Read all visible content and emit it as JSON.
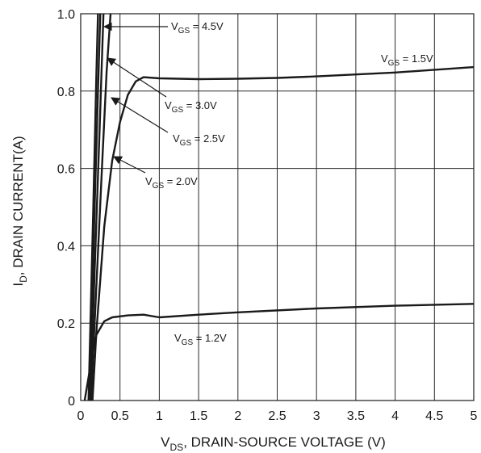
{
  "chart_data": {
    "type": "line",
    "xlabel": {
      "base": "V",
      "sub": "DS",
      "rest": ", DRAIN-SOURCE VOLTAGE (V)"
    },
    "ylabel": {
      "base": "I",
      "sub": "D",
      "rest": ", DRAIN CURRENT(A)"
    },
    "xlim": [
      0,
      5
    ],
    "ylim": [
      0,
      1.0
    ],
    "x_ticks": [
      "0",
      "0.5",
      "1",
      "1.5",
      "2",
      "2.5",
      "3",
      "3.5",
      "4",
      "4.5",
      "5"
    ],
    "y_ticks": [
      "0",
      "0.2",
      "0.4",
      "0.6",
      "0.8",
      "1.0"
    ],
    "grid": true,
    "series": [
      {
        "name": "V_GS = 1.2V",
        "points": [
          [
            0.05,
            0.0
          ],
          [
            0.1,
            0.06
          ],
          [
            0.15,
            0.12
          ],
          [
            0.2,
            0.17
          ],
          [
            0.3,
            0.205
          ],
          [
            0.4,
            0.215
          ],
          [
            0.6,
            0.22
          ],
          [
            0.8,
            0.222
          ],
          [
            1.0,
            0.215
          ],
          [
            1.5,
            0.222
          ],
          [
            2.0,
            0.228
          ],
          [
            3.0,
            0.238
          ],
          [
            4.0,
            0.245
          ],
          [
            5.0,
            0.25
          ]
        ]
      },
      {
        "name": "V_GS = 1.5V",
        "points": [
          [
            0.15,
            0.0
          ],
          [
            0.2,
            0.18
          ],
          [
            0.3,
            0.45
          ],
          [
            0.4,
            0.62
          ],
          [
            0.5,
            0.72
          ],
          [
            0.6,
            0.79
          ],
          [
            0.7,
            0.825
          ],
          [
            0.8,
            0.836
          ],
          [
            1.0,
            0.833
          ],
          [
            1.5,
            0.831
          ],
          [
            2.0,
            0.832
          ],
          [
            2.5,
            0.834
          ],
          [
            3.0,
            0.838
          ],
          [
            4.0,
            0.848
          ],
          [
            5.0,
            0.862
          ]
        ]
      },
      {
        "name": "V_GS = 2.0V",
        "points": [
          [
            0.13,
            0.0
          ],
          [
            0.2,
            0.3
          ],
          [
            0.27,
            0.6
          ],
          [
            0.33,
            0.85
          ],
          [
            0.38,
            1.0
          ]
        ]
      },
      {
        "name": "V_GS = 2.5V",
        "points": [
          [
            0.12,
            0.0
          ],
          [
            0.18,
            0.35
          ],
          [
            0.24,
            0.7
          ],
          [
            0.29,
            1.0
          ]
        ]
      },
      {
        "name": "V_GS = 3.0V",
        "points": [
          [
            0.11,
            0.0
          ],
          [
            0.17,
            0.45
          ],
          [
            0.22,
            0.8
          ],
          [
            0.25,
            1.0
          ]
        ]
      },
      {
        "name": "V_GS = 4.5V",
        "points": [
          [
            0.1,
            0.0
          ],
          [
            0.16,
            0.5
          ],
          [
            0.2,
            0.85
          ],
          [
            0.22,
            1.0
          ]
        ]
      }
    ],
    "annotations": [
      {
        "base": "V",
        "sub": "GS",
        "rest": " = 4.5V"
      },
      {
        "base": "V",
        "sub": "GS",
        "rest": " = 1.5V"
      },
      {
        "base": "V",
        "sub": "GS",
        "rest": " = 3.0V"
      },
      {
        "base": "V",
        "sub": "GS",
        "rest": " = 2.5V"
      },
      {
        "base": "V",
        "sub": "GS",
        "rest": " = 2.0V"
      },
      {
        "base": "V",
        "sub": "GS",
        "rest": " = 1.2V"
      }
    ]
  }
}
